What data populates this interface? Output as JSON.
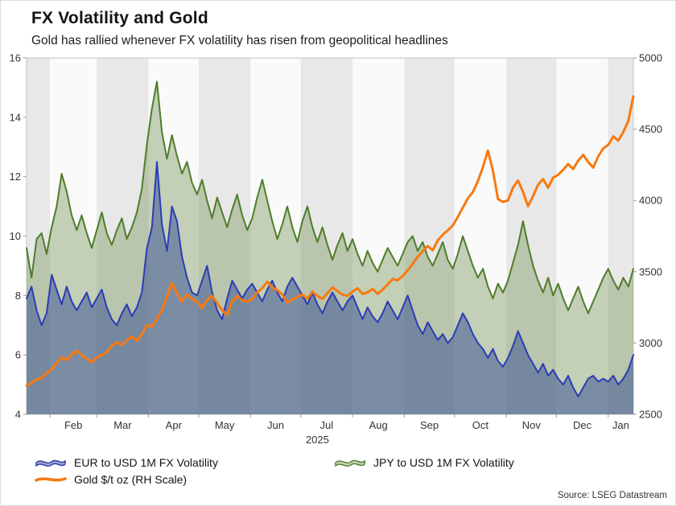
{
  "source": "Source: LSEG Datastream",
  "colors": {
    "background": "#ffffff",
    "band_shaded": "#e8e8e8",
    "band_plain": "#fafafa",
    "frame": "#c4c4c4",
    "tick": "#999999",
    "axis_text": "#333333"
  },
  "chart_data": {
    "type": "line",
    "title": "FX Volatility and Gold",
    "subtitle": "Gold has rallied whenever FX volatility has risen from geopolitical headlines",
    "legend_position": "bottom-left",
    "grid": false,
    "x_step": 3,
    "draw_order": [
      1,
      0,
      2
    ],
    "x_axis": {
      "unit": "days",
      "domain": [
        0,
        363
      ],
      "year_label": "2025",
      "months": [
        {
          "label": "",
          "start": 0,
          "end": 14,
          "shaded": true
        },
        {
          "label": "Feb",
          "start": 14,
          "end": 42,
          "shaded": false
        },
        {
          "label": "Mar",
          "start": 42,
          "end": 73,
          "shaded": true
        },
        {
          "label": "Apr",
          "start": 73,
          "end": 103,
          "shaded": false
        },
        {
          "label": "May",
          "start": 103,
          "end": 134,
          "shaded": true
        },
        {
          "label": "Jun",
          "start": 134,
          "end": 164,
          "shaded": false
        },
        {
          "label": "Jul",
          "start": 164,
          "end": 195,
          "shaded": true
        },
        {
          "label": "Aug",
          "start": 195,
          "end": 226,
          "shaded": false
        },
        {
          "label": "Sep",
          "start": 226,
          "end": 256,
          "shaded": true
        },
        {
          "label": "Oct",
          "start": 256,
          "end": 287,
          "shaded": false
        },
        {
          "label": "Nov",
          "start": 287,
          "end": 317,
          "shaded": true
        },
        {
          "label": "Dec",
          "start": 317,
          "end": 348,
          "shaded": false
        },
        {
          "label": "Jan",
          "start": 348,
          "end": 363,
          "shaded": true
        }
      ]
    },
    "y_left": {
      "label": "1M FX Volatility",
      "range": [
        4,
        16
      ],
      "ticks": [
        4,
        6,
        8,
        10,
        12,
        14,
        16
      ]
    },
    "y_right": {
      "label": "Gold $/t oz",
      "range": [
        2500,
        5000
      ],
      "ticks": [
        2500,
        3000,
        3500,
        4000,
        4500,
        5000
      ]
    },
    "series": [
      {
        "name": "EUR to USD 1M FX Volatility",
        "axis": "left",
        "style": "area",
        "line_color": "#2b3cb5",
        "fill_color": "rgba(58,80,150,0.52)",
        "values": [
          7.9,
          8.3,
          7.5,
          7.0,
          7.4,
          8.7,
          8.2,
          7.7,
          8.3,
          7.8,
          7.5,
          7.8,
          8.1,
          7.6,
          7.9,
          8.2,
          7.6,
          7.2,
          7.0,
          7.4,
          7.7,
          7.3,
          7.6,
          8.1,
          9.6,
          10.3,
          12.5,
          10.4,
          9.5,
          11.0,
          10.5,
          9.3,
          8.6,
          8.1,
          8.0,
          8.5,
          9.0,
          8.1,
          7.5,
          7.2,
          7.9,
          8.5,
          8.2,
          7.9,
          8.2,
          8.4,
          8.1,
          7.8,
          8.2,
          8.5,
          8.1,
          7.8,
          8.3,
          8.6,
          8.3,
          8.0,
          7.7,
          8.1,
          7.7,
          7.4,
          7.8,
          8.1,
          7.8,
          7.5,
          7.8,
          8.0,
          7.6,
          7.2,
          7.6,
          7.3,
          7.1,
          7.4,
          7.8,
          7.5,
          7.2,
          7.6,
          8.0,
          7.5,
          7.0,
          6.7,
          7.1,
          6.8,
          6.5,
          6.7,
          6.4,
          6.6,
          7.0,
          7.4,
          7.1,
          6.7,
          6.4,
          6.2,
          5.9,
          6.2,
          5.8,
          5.6,
          5.9,
          6.3,
          6.8,
          6.4,
          6.0,
          5.7,
          5.4,
          5.7,
          5.3,
          5.5,
          5.2,
          5.0,
          5.3,
          4.9,
          4.6,
          4.9,
          5.2,
          5.3,
          5.1,
          5.2,
          5.1,
          5.3,
          5.0,
          5.2,
          5.5,
          6.0
        ]
      },
      {
        "name": "JPY to USD 1M FX Volatility",
        "axis": "left",
        "style": "area",
        "line_color": "#4e7d2a",
        "fill_color": "rgba(118,148,88,0.42)",
        "values": [
          9.6,
          8.6,
          9.9,
          10.1,
          9.4,
          10.3,
          11.0,
          12.1,
          11.5,
          10.7,
          10.2,
          10.7,
          10.1,
          9.6,
          10.2,
          10.8,
          10.1,
          9.7,
          10.2,
          10.6,
          9.9,
          10.3,
          10.8,
          11.6,
          13.1,
          14.3,
          15.2,
          13.5,
          12.6,
          13.4,
          12.7,
          12.1,
          12.5,
          11.8,
          11.4,
          11.9,
          11.2,
          10.6,
          11.3,
          10.8,
          10.3,
          10.9,
          11.4,
          10.7,
          10.2,
          10.6,
          11.3,
          11.9,
          11.2,
          10.5,
          9.9,
          10.4,
          11.0,
          10.3,
          9.8,
          10.5,
          11.0,
          10.3,
          9.8,
          10.3,
          9.7,
          9.2,
          9.7,
          10.1,
          9.5,
          9.9,
          9.4,
          9.0,
          9.5,
          9.1,
          8.8,
          9.2,
          9.6,
          9.3,
          9.0,
          9.4,
          9.8,
          10.0,
          9.5,
          9.8,
          9.3,
          9.0,
          9.4,
          9.8,
          9.2,
          8.9,
          9.4,
          10.0,
          9.5,
          9.0,
          8.6,
          8.9,
          8.3,
          7.9,
          8.4,
          8.1,
          8.5,
          9.1,
          9.7,
          10.5,
          9.7,
          9.0,
          8.5,
          8.1,
          8.6,
          8.0,
          8.4,
          7.9,
          7.5,
          7.9,
          8.3,
          7.8,
          7.4,
          7.8,
          8.2,
          8.6,
          8.9,
          8.5,
          8.2,
          8.6,
          8.3,
          8.9
        ]
      },
      {
        "name": "Gold $/t oz (RH Scale)",
        "axis": "right",
        "style": "line",
        "line_color": "#f8790f",
        "values": [
          2700,
          2720,
          2745,
          2755,
          2790,
          2815,
          2860,
          2900,
          2880,
          2920,
          2945,
          2915,
          2890,
          2865,
          2900,
          2915,
          2935,
          2980,
          3005,
          2985,
          3020,
          3045,
          3015,
          3060,
          3125,
          3115,
          3170,
          3230,
          3325,
          3420,
          3350,
          3290,
          3340,
          3310,
          3290,
          3245,
          3300,
          3330,
          3280,
          3230,
          3195,
          3290,
          3330,
          3300,
          3290,
          3310,
          3355,
          3385,
          3430,
          3390,
          3370,
          3340,
          3285,
          3305,
          3325,
          3340,
          3310,
          3360,
          3330,
          3310,
          3350,
          3390,
          3365,
          3340,
          3330,
          3360,
          3385,
          3345,
          3355,
          3380,
          3345,
          3375,
          3410,
          3450,
          3440,
          3470,
          3510,
          3555,
          3605,
          3645,
          3680,
          3650,
          3720,
          3760,
          3790,
          3825,
          3885,
          3950,
          4015,
          4060,
          4135,
          4235,
          4350,
          4210,
          4010,
          3990,
          4000,
          4090,
          4140,
          4060,
          3960,
          4030,
          4110,
          4150,
          4090,
          4160,
          4180,
          4215,
          4255,
          4220,
          4280,
          4320,
          4270,
          4230,
          4310,
          4365,
          4390,
          4450,
          4420,
          4480,
          4560,
          4730
        ]
      }
    ]
  }
}
